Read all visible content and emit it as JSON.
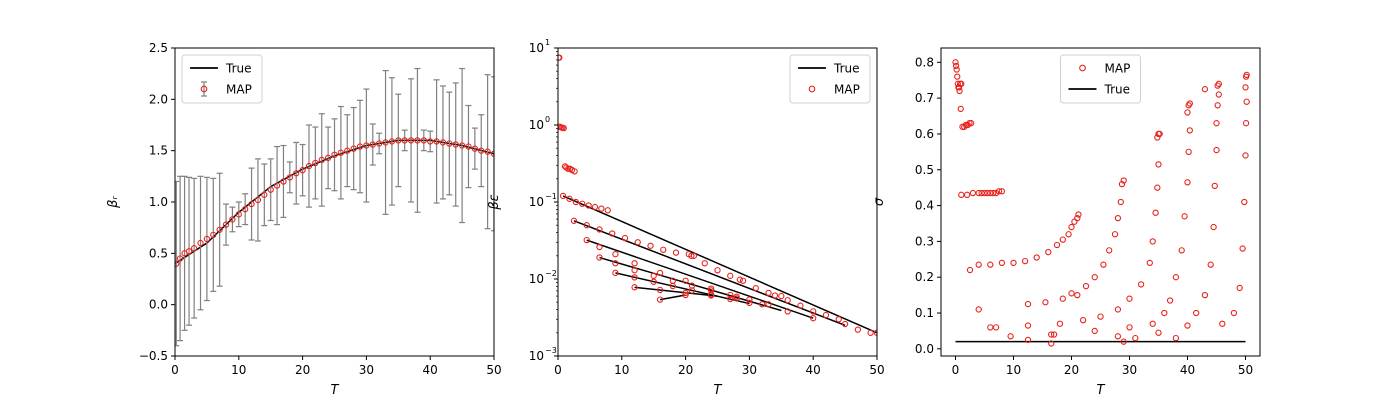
{
  "chart_data": [
    {
      "type": "scatter",
      "title": "",
      "xlabel": "T",
      "ylabel": "β_r",
      "xlim": [
        0,
        50
      ],
      "ylim": [
        -0.5,
        2.5
      ],
      "x_ticks": [
        0,
        10,
        20,
        30,
        40,
        50
      ],
      "y_ticks": [
        -0.5,
        0.0,
        0.5,
        1.0,
        1.5,
        2.0,
        2.5
      ],
      "x_tick_labels": [
        "0",
        "10",
        "20",
        "30",
        "40",
        "50"
      ],
      "y_tick_labels": [
        "−0.5",
        "0.0",
        "0.5",
        "1.0",
        "1.5",
        "2.0",
        "2.5"
      ],
      "legend": {
        "placement": "upper-left",
        "entries": [
          "True",
          "MAP"
        ]
      },
      "series": [
        {
          "name": "True",
          "kind": "line",
          "color": "#000000",
          "x": [
            0,
            5,
            10,
            15,
            20,
            25,
            30,
            35,
            40,
            45,
            50
          ],
          "y": [
            0.4,
            0.6,
            0.9,
            1.15,
            1.32,
            1.45,
            1.55,
            1.6,
            1.6,
            1.55,
            1.47
          ]
        },
        {
          "name": "MAP",
          "kind": "points_with_error",
          "color": "#e8211b",
          "error_color": "#808080",
          "x": [
            0.2,
            0.8,
            1.5,
            2.2,
            3.0,
            4.0,
            5.0,
            6.0,
            7.0,
            8.0,
            9.0,
            10.0,
            11.0,
            12.0,
            13.0,
            14.0,
            15.0,
            16.0,
            17.0,
            18.0,
            19.0,
            20.0,
            21.0,
            22.0,
            23.0,
            24.0,
            25.0,
            26.0,
            27.0,
            28.0,
            29.0,
            30.0,
            31.0,
            32.0,
            33.0,
            34.0,
            35.0,
            36.0,
            37.0,
            38.0,
            39.0,
            40.0,
            41.0,
            42.0,
            43.0,
            44.0,
            45.0,
            46.0,
            47.0,
            48.0,
            49.0,
            50.0
          ],
          "y": [
            0.4,
            0.45,
            0.5,
            0.52,
            0.55,
            0.6,
            0.64,
            0.68,
            0.73,
            0.78,
            0.83,
            0.88,
            0.93,
            0.98,
            1.02,
            1.07,
            1.12,
            1.16,
            1.2,
            1.24,
            1.28,
            1.31,
            1.35,
            1.38,
            1.41,
            1.43,
            1.46,
            1.48,
            1.5,
            1.52,
            1.54,
            1.55,
            1.56,
            1.57,
            1.58,
            1.59,
            1.6,
            1.6,
            1.6,
            1.6,
            1.6,
            1.59,
            1.59,
            1.58,
            1.57,
            1.56,
            1.55,
            1.54,
            1.52,
            1.5,
            1.49,
            1.47
          ],
          "err": [
            0.8,
            0.8,
            0.75,
            0.72,
            0.68,
            0.65,
            0.6,
            0.55,
            0.55,
            0.2,
            0.12,
            0.12,
            0.15,
            0.35,
            0.4,
            0.3,
            0.3,
            0.38,
            0.35,
            0.15,
            0.3,
            0.25,
            0.4,
            0.35,
            0.45,
            0.3,
            0.35,
            0.45,
            0.35,
            0.4,
            0.45,
            0.55,
            0.2,
            0.1,
            0.7,
            0.62,
            0.45,
            0.1,
            0.6,
            0.7,
            0.1,
            0.1,
            0.6,
            0.55,
            0.5,
            0.6,
            0.75,
            0.4,
            0.2,
            0.35,
            0.75,
            0.75
          ]
        }
      ]
    },
    {
      "type": "scatter",
      "title": "",
      "xlabel": "T",
      "ylabel": "β_ε",
      "yscale": "log",
      "xlim": [
        0,
        50
      ],
      "ylim": [
        0.001,
        10
      ],
      "x_ticks": [
        0,
        10,
        20,
        30,
        40,
        50
      ],
      "y_ticks": [
        0.001,
        0.01,
        0.1,
        1,
        10
      ],
      "x_tick_labels": [
        "0",
        "10",
        "20",
        "30",
        "40",
        "50"
      ],
      "y_tick_labels": [
        "10",
        "10",
        "10",
        "10",
        "10"
      ],
      "y_tick_exponents": [
        "−3",
        "−2",
        "−1",
        "0",
        "1"
      ],
      "legend": {
        "placement": "upper-right",
        "entries": [
          "True",
          "MAP"
        ]
      },
      "series": [
        {
          "name": "True",
          "kind": "line",
          "color": "#000000",
          "x": [
            0.8,
            50
          ],
          "y": [
            0.12,
            0.002
          ]
        },
        {
          "name": "True",
          "kind": "line",
          "color": "#000000",
          "x": [
            2.5,
            45
          ],
          "y": [
            0.057,
            0.0025
          ]
        },
        {
          "name": "True",
          "kind": "line",
          "color": "#000000",
          "x": [
            4.5,
            40
          ],
          "y": [
            0.032,
            0.0031
          ]
        },
        {
          "name": "True",
          "kind": "line",
          "color": "#000000",
          "x": [
            6.5,
            35
          ],
          "y": [
            0.019,
            0.0039
          ]
        },
        {
          "name": "True",
          "kind": "line",
          "color": "#000000",
          "x": [
            9.0,
            30
          ],
          "y": [
            0.012,
            0.0048
          ]
        },
        {
          "name": "True",
          "kind": "line",
          "color": "#000000",
          "x": [
            12.0,
            25
          ],
          "y": [
            0.0078,
            0.006
          ]
        },
        {
          "name": "True",
          "kind": "line",
          "color": "#000000",
          "x": [
            16.0,
            20
          ],
          "y": [
            0.0054,
            0.0062
          ]
        },
        {
          "name": "MAP",
          "kind": "points",
          "color": "#e8211b",
          "x": [
            0.1,
            0.2,
            0.3,
            0.5,
            0.7,
            0.9,
            1.1,
            1.3,
            1.6,
            1.9,
            2.2,
            2.6,
            0.8,
            1.8,
            2.8,
            3.8,
            4.8,
            5.8,
            6.8,
            7.8,
            2.5,
            4.5,
            6.5,
            8.5,
            10.5,
            12.5,
            14.5,
            16.5,
            18.5,
            20.5,
            20.9,
            21.3,
            23.0,
            25.0,
            27.0,
            28.5,
            29.0,
            31.0,
            33.0,
            34.0,
            35.0,
            36.0,
            38.0,
            40.0,
            42.0,
            44.0,
            45.0,
            47.0,
            49.0,
            50.0
          ],
          "y": [
            7.5,
            7.5,
            0.95,
            0.93,
            0.92,
            0.91,
            0.29,
            0.28,
            0.27,
            0.27,
            0.26,
            0.25,
            0.12,
            0.11,
            0.1,
            0.095,
            0.09,
            0.086,
            0.082,
            0.078,
            0.057,
            0.05,
            0.044,
            0.039,
            0.034,
            0.03,
            0.027,
            0.024,
            0.022,
            0.021,
            0.02,
            0.02,
            0.016,
            0.013,
            0.011,
            0.0098,
            0.0095,
            0.0076,
            0.0066,
            0.0061,
            0.006,
            0.0053,
            0.0045,
            0.0038,
            0.0034,
            0.003,
            0.0026,
            0.0022,
            0.002,
            0.002
          ]
        },
        {
          "name": "MAP",
          "kind": "points",
          "color": "#e8211b",
          "x": [
            4.5,
            6.5,
            9.0,
            12.0,
            16.0,
            20.0,
            24.0,
            28.0,
            32.0,
            36.0,
            40.0,
            6.5,
            9.0,
            12.0,
            15.0,
            18.0,
            21.0,
            24.0,
            27.0,
            30.0,
            33.0,
            9.0,
            12.0,
            15.0,
            18.0,
            21.0,
            24.0,
            27.0,
            30.0,
            12.0,
            16.0,
            20.0,
            24.0,
            28.0,
            16.0,
            20.0
          ],
          "y": [
            0.032,
            0.026,
            0.021,
            0.016,
            0.012,
            0.0095,
            0.0075,
            0.0059,
            0.0047,
            0.0038,
            0.0031,
            0.019,
            0.016,
            0.013,
            0.011,
            0.0095,
            0.0082,
            0.0071,
            0.0062,
            0.0054,
            0.0047,
            0.012,
            0.0105,
            0.0092,
            0.0081,
            0.0071,
            0.0063,
            0.0055,
            0.0049,
            0.0078,
            0.0072,
            0.0066,
            0.0061,
            0.0056,
            0.0054,
            0.0062
          ]
        }
      ]
    },
    {
      "type": "scatter",
      "title": "",
      "xlabel": "T",
      "ylabel": "σ",
      "xlim": [
        -2.5,
        52.5
      ],
      "ylim": [
        -0.02,
        0.84
      ],
      "x_ticks": [
        0,
        10,
        20,
        30,
        40,
        50
      ],
      "y_ticks": [
        0.0,
        0.1,
        0.2,
        0.3,
        0.4,
        0.5,
        0.6,
        0.7,
        0.8
      ],
      "x_tick_labels": [
        "0",
        "10",
        "20",
        "30",
        "40",
        "50"
      ],
      "y_tick_labels": [
        "0.0",
        "0.1",
        "0.2",
        "0.3",
        "0.4",
        "0.5",
        "0.6",
        "0.7",
        "0.8"
      ],
      "legend": {
        "placement": "upper-center",
        "entries": [
          "MAP",
          "True"
        ]
      },
      "series": [
        {
          "name": "MAP",
          "kind": "points",
          "color": "#e8211b",
          "x": [
            0.0,
            0.1,
            0.2,
            0.3,
            0.4,
            0.5,
            0.6,
            0.7,
            0.8,
            1.0,
            0.9,
            1.2,
            1.5,
            1.8,
            2.1,
            2.4,
            2.7,
            1.0,
            2.0,
            3.0,
            4.0,
            4.5,
            5.0,
            5.5,
            6.0,
            6.5,
            7.0,
            7.5,
            8.0,
            2.5,
            4.0,
            6.0,
            8.0,
            10.0,
            12.0,
            14.0,
            16.0,
            17.5,
            18.5,
            19.5,
            20.0,
            20.5,
            21.0,
            21.2,
            4.0,
            6.0,
            9.5,
            12.5,
            15.5,
            18.5,
            21.0,
            22.5,
            24.0,
            25.5,
            26.5,
            27.5,
            28.0,
            28.5,
            28.7,
            29.0,
            7.0,
            12.5,
            16.5,
            18.0,
            20.0,
            22.0,
            25.0,
            28.0,
            30.0,
            32.0,
            33.5,
            34.0,
            34.5,
            34.8,
            35.0,
            35.2,
            12.5,
            16.5,
            29.0,
            31.0,
            34.0,
            36.0,
            37.0,
            38.0,
            39.0,
            39.5,
            40.0,
            40.2,
            40.4,
            17.0,
            24.0,
            30.0,
            35.0,
            38.0,
            40.0,
            41.5,
            43.0,
            44.0,
            44.5,
            44.7,
            45.0,
            45.0,
            45.2,
            45.4,
            28.0,
            40.0,
            43.0,
            46.0,
            48.0,
            49.0,
            49.5,
            49.8,
            50.0,
            50.1,
            50.2
          ],
          "y": [
            0.8,
            0.79,
            0.78,
            0.76,
            0.74,
            0.73,
            0.73,
            0.72,
            0.74,
            0.74,
            0.67,
            0.62,
            0.62,
            0.625,
            0.625,
            0.63,
            0.63,
            0.43,
            0.43,
            0.435,
            0.435,
            0.435,
            0.435,
            0.435,
            0.435,
            0.435,
            0.435,
            0.44,
            0.44,
            0.22,
            0.235,
            0.235,
            0.24,
            0.24,
            0.245,
            0.255,
            0.27,
            0.29,
            0.305,
            0.32,
            0.34,
            0.355,
            0.365,
            0.375,
            0.11,
            0.06,
            0.035,
            0.125,
            0.13,
            0.14,
            0.15,
            0.175,
            0.2,
            0.235,
            0.275,
            0.32,
            0.365,
            0.41,
            0.46,
            0.47,
            0.06,
            0.065,
            0.015,
            0.07,
            0.155,
            0.08,
            0.09,
            0.11,
            0.14,
            0.18,
            0.24,
            0.3,
            0.38,
            0.45,
            0.515,
            0.6,
            0.025,
            0.04,
            0.02,
            0.03,
            0.07,
            0.1,
            0.135,
            0.2,
            0.275,
            0.37,
            0.465,
            0.55,
            0.61,
            0.04,
            0.05,
            0.06,
            0.045,
            0.03,
            0.065,
            0.1,
            0.15,
            0.235,
            0.34,
            0.455,
            0.555,
            0.63,
            0.68,
            0.71,
            0.035,
            0.66,
            0.725,
            0.07,
            0.1,
            0.17,
            0.28,
            0.41,
            0.54,
            0.63,
            0.69
          ],
          "extra_points_x": [
            40.2,
            40.4,
            45.2,
            45.4,
            50.0,
            50.1,
            50.2,
            34.8,
            35.0
          ],
          "extra_points_y": [
            0.68,
            0.685,
            0.735,
            0.74,
            0.73,
            0.76,
            0.765,
            0.59,
            0.6
          ]
        },
        {
          "name": "True",
          "kind": "line",
          "color": "#000000",
          "x": [
            0,
            50
          ],
          "y": [
            0.02,
            0.02
          ]
        }
      ]
    }
  ]
}
